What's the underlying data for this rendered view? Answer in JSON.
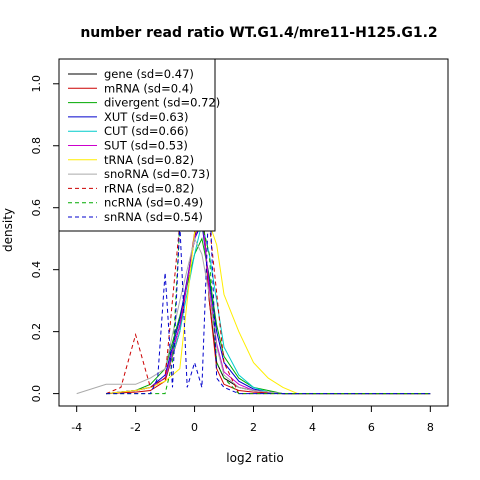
{
  "chart_data": {
    "type": "line",
    "title": "number read ratio WT.G1.4/mre11-H125.G1.2",
    "xlabel": "log2 ratio",
    "ylabel": "density",
    "xlim": [
      -4.6,
      8.6
    ],
    "ylim": [
      -0.04,
      1.08
    ],
    "xticks": [
      -4,
      -2,
      0,
      2,
      4,
      6,
      8
    ],
    "yticks": [
      0.0,
      0.2,
      0.4,
      0.6,
      0.8,
      1.0
    ],
    "xtick_labels": [
      "-4",
      "-2",
      "0",
      "2",
      "4",
      "6",
      "8"
    ],
    "ytick_labels": [
      "0.0",
      "0.2",
      "0.4",
      "0.6",
      "0.8",
      "1.0"
    ],
    "grid": false,
    "legend_position": "top-left",
    "series": [
      {
        "name": "gene (sd=0.47)",
        "color": "#000000",
        "dash": "solid",
        "x": [
          -3,
          -2,
          -1.5,
          -1,
          -0.5,
          0,
          0.25,
          0.5,
          0.75,
          1,
          1.5,
          2,
          3,
          8
        ],
        "y": [
          0,
          0.01,
          0.02,
          0.05,
          0.22,
          0.5,
          0.62,
          0.3,
          0.1,
          0.05,
          0.02,
          0.01,
          0,
          0
        ]
      },
      {
        "name": "mRNA (sd=0.4)",
        "color": "#cc0000",
        "dash": "solid",
        "x": [
          -3,
          -2,
          -1.5,
          -1,
          -0.5,
          0,
          0.25,
          0.5,
          0.75,
          1,
          1.5,
          2,
          3,
          8
        ],
        "y": [
          0,
          0.005,
          0.01,
          0.04,
          0.2,
          0.52,
          0.64,
          0.3,
          0.08,
          0.03,
          0.01,
          0.005,
          0,
          0
        ]
      },
      {
        "name": "divergent (sd=0.72)",
        "color": "#00aa00",
        "dash": "solid",
        "x": [
          -3,
          -2,
          -1.5,
          -1,
          -0.5,
          0,
          0.25,
          0.5,
          0.75,
          1,
          1.5,
          2,
          2.5,
          3,
          8
        ],
        "y": [
          0,
          0.01,
          0.03,
          0.08,
          0.25,
          0.45,
          0.5,
          0.38,
          0.22,
          0.12,
          0.05,
          0.02,
          0.01,
          0,
          0
        ]
      },
      {
        "name": "XUT (sd=0.63)",
        "color": "#0000cc",
        "dash": "solid",
        "x": [
          -3,
          -2,
          -1.5,
          -1,
          -0.5,
          0,
          0.25,
          0.5,
          0.75,
          1,
          1.5,
          2,
          2.5,
          3,
          8
        ],
        "y": [
          0,
          0.01,
          0.02,
          0.06,
          0.24,
          0.5,
          0.55,
          0.36,
          0.2,
          0.1,
          0.04,
          0.015,
          0.005,
          0,
          0
        ]
      },
      {
        "name": "CUT (sd=0.66)",
        "color": "#00cccc",
        "dash": "solid",
        "x": [
          -3,
          -2,
          -1.5,
          -1,
          -0.5,
          0,
          0.25,
          0.5,
          0.75,
          1,
          1.5,
          2,
          2.5,
          3,
          8
        ],
        "y": [
          0,
          0.01,
          0.02,
          0.05,
          0.2,
          0.45,
          0.55,
          0.45,
          0.3,
          0.15,
          0.06,
          0.02,
          0.005,
          0,
          0
        ]
      },
      {
        "name": "SUT (sd=0.53)",
        "color": "#cc00cc",
        "dash": "solid",
        "x": [
          -3,
          -2,
          -1.5,
          -1,
          -0.5,
          0,
          0.25,
          0.5,
          0.75,
          1,
          1.5,
          2,
          3,
          8
        ],
        "y": [
          0,
          0.01,
          0.02,
          0.05,
          0.22,
          0.5,
          0.58,
          0.34,
          0.16,
          0.07,
          0.03,
          0.01,
          0,
          0
        ]
      },
      {
        "name": "tRNA (sd=0.82)",
        "color": "#ffee00",
        "dash": "solid",
        "x": [
          -3,
          -2,
          -1.5,
          -1,
          -0.5,
          0,
          0.5,
          0.75,
          1,
          1.5,
          2,
          2.5,
          3,
          3.5,
          8
        ],
        "y": [
          0,
          0.01,
          0.02,
          0.04,
          0.08,
          0.52,
          0.55,
          0.48,
          0.32,
          0.2,
          0.1,
          0.05,
          0.02,
          0,
          0
        ]
      },
      {
        "name": "snoRNA (sd=0.73)",
        "color": "#aaaaaa",
        "dash": "solid",
        "x": [
          -4,
          -3,
          -2,
          -1.5,
          -1,
          -0.5,
          0,
          0.25,
          0.5,
          0.75,
          1,
          1.5,
          2,
          3,
          8
        ],
        "y": [
          0,
          0.03,
          0.03,
          0.05,
          0.08,
          0.3,
          0.5,
          0.45,
          0.32,
          0.15,
          0.06,
          0.02,
          0.01,
          0,
          0
        ]
      },
      {
        "name": "rRNA (sd=0.82)",
        "color": "#cc0000",
        "dash": "dashed",
        "x": [
          -3,
          -2.5,
          -2,
          -1.5,
          -1,
          -0.5,
          0,
          0.5,
          1,
          1.5,
          2,
          3,
          8
        ],
        "y": [
          0,
          0.02,
          0.19,
          0.02,
          0.05,
          0.55,
          0.58,
          0.55,
          0.1,
          0,
          0,
          0,
          0
        ]
      },
      {
        "name": "ncRNA (sd=0.49)",
        "color": "#00aa00",
        "dash": "dashed",
        "x": [
          -3,
          -2,
          -1.5,
          -1.25,
          -1,
          -0.75,
          -0.5,
          -0.25,
          0,
          0.25,
          0.5,
          0.75,
          1,
          1.5,
          2,
          3,
          8
        ],
        "y": [
          0,
          0,
          0,
          0,
          0,
          0.1,
          0.55,
          0.6,
          0.55,
          0.55,
          0.45,
          0.1,
          0.05,
          0,
          0,
          0,
          0
        ]
      },
      {
        "name": "snRNA (sd=0.54)",
        "color": "#0000cc",
        "dash": "dashed",
        "x": [
          -3,
          -2,
          -1.5,
          -1.25,
          -1,
          -0.75,
          -0.5,
          -0.25,
          0,
          0.25,
          0.5,
          0.75,
          1,
          1.5,
          2,
          3,
          8
        ],
        "y": [
          0,
          0,
          0,
          0.05,
          0.39,
          0.02,
          0.55,
          0.02,
          0.1,
          0.02,
          0.66,
          0.05,
          0.02,
          0,
          0,
          0,
          0
        ]
      }
    ]
  }
}
